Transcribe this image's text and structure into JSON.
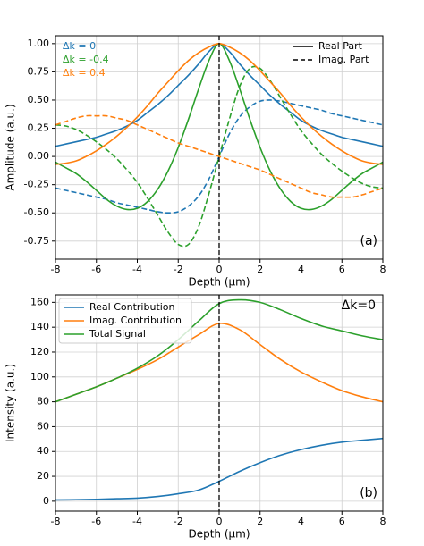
{
  "chart_data": [
    {
      "type": "line",
      "ylabel": "Amplitude (a.u.)",
      "xlabel": "Depth (μm)",
      "annotation": "(a)",
      "xlim": [
        -8,
        8
      ],
      "ylim": [
        -0.91,
        1.07
      ],
      "grid": true,
      "vline": 0,
      "xticks": [
        -8,
        -6,
        -4,
        -2,
        0,
        2,
        4,
        6,
        8
      ],
      "yticks": [
        -0.75,
        {
          "value": -0.5,
          "label": "-0.50"
        },
        -0.25,
        {
          "value": 0,
          "label": "0.00"
        },
        0.25,
        {
          "value": 0.5,
          "label": "0.50"
        },
        0.75,
        {
          "value": 1,
          "label": "1.00"
        }
      ],
      "x": [
        -8,
        -7.5,
        -7,
        -6.5,
        -6,
        -5.5,
        -5,
        -4.5,
        -4,
        -3.5,
        -3,
        -2.5,
        -2,
        -1.5,
        -1,
        -0.5,
        0,
        0.5,
        1,
        1.5,
        2,
        2.5,
        3,
        3.5,
        4,
        4.5,
        5,
        5.5,
        6,
        6.5,
        7,
        7.5,
        8
      ],
      "style_legend": [
        {
          "label": "Real Part",
          "dash": false
        },
        {
          "label": "Imag. Part",
          "dash": true
        }
      ],
      "groups": [
        {
          "label": "Δk = 0",
          "color": "#1f77b4",
          "lines": [
            [
              0.09,
              0.11,
              0.13,
              0.15,
              0.17,
              0.2,
              0.23,
              0.27,
              0.32,
              0.39,
              0.46,
              0.54,
              0.63,
              0.72,
              0.82,
              0.93,
              1.0,
              0.93,
              0.82,
              0.72,
              0.63,
              0.54,
              0.46,
              0.39,
              0.32,
              0.27,
              0.23,
              0.2,
              0.17,
              0.15,
              0.13,
              0.11,
              0.09
            ],
            [
              -0.28,
              -0.3,
              -0.32,
              -0.34,
              -0.36,
              -0.38,
              -0.41,
              -0.43,
              -0.45,
              -0.47,
              -0.49,
              -0.5,
              -0.49,
              -0.44,
              -0.35,
              -0.2,
              0,
              0.2,
              0.35,
              0.44,
              0.49,
              0.5,
              0.49,
              0.47,
              0.45,
              0.43,
              0.41,
              0.38,
              0.36,
              0.34,
              0.32,
              0.3,
              0.28
            ]
          ]
        },
        {
          "label": "Δk = -0.4",
          "color": "#2ca02c",
          "lines": [
            [
              -0.05,
              -0.1,
              -0.15,
              -0.22,
              -0.3,
              -0.38,
              -0.44,
              -0.47,
              -0.46,
              -0.4,
              -0.29,
              -0.13,
              0.08,
              0.33,
              0.6,
              0.85,
              1.0,
              0.85,
              0.6,
              0.33,
              0.08,
              -0.13,
              -0.29,
              -0.4,
              -0.46,
              -0.47,
              -0.44,
              -0.38,
              -0.3,
              -0.22,
              -0.15,
              -0.1,
              -0.05
            ],
            [
              0.28,
              0.27,
              0.24,
              0.19,
              0.13,
              0.06,
              -0.02,
              -0.12,
              -0.23,
              -0.37,
              -0.52,
              -0.67,
              -0.78,
              -0.78,
              -0.62,
              -0.33,
              0,
              0.33,
              0.62,
              0.78,
              0.78,
              0.67,
              0.52,
              0.37,
              0.23,
              0.12,
              0.02,
              -0.06,
              -0.13,
              -0.19,
              -0.24,
              -0.27,
              -0.28
            ]
          ]
        },
        {
          "label": "Δk = 0.4",
          "color": "#ff7f0e",
          "lines": [
            [
              -0.07,
              -0.06,
              -0.04,
              0.0,
              0.05,
              0.11,
              0.18,
              0.26,
              0.35,
              0.45,
              0.56,
              0.66,
              0.76,
              0.85,
              0.92,
              0.97,
              1.0,
              0.97,
              0.92,
              0.85,
              0.76,
              0.66,
              0.56,
              0.45,
              0.35,
              0.26,
              0.18,
              0.11,
              0.05,
              0.0,
              -0.04,
              -0.06,
              -0.07
            ],
            [
              0.28,
              0.31,
              0.34,
              0.36,
              0.36,
              0.36,
              0.34,
              0.32,
              0.28,
              0.24,
              0.2,
              0.16,
              0.12,
              0.09,
              0.06,
              0.03,
              0,
              -0.03,
              -0.06,
              -0.09,
              -0.12,
              -0.16,
              -0.2,
              -0.24,
              -0.28,
              -0.32,
              -0.34,
              -0.36,
              -0.36,
              -0.36,
              -0.34,
              -0.31,
              -0.28
            ]
          ]
        }
      ]
    },
    {
      "type": "line",
      "ylabel": "Intensity (a.u.)",
      "xlabel": "Depth (μm)",
      "annotation": "(b)",
      "title": "Δk=0",
      "xlim": [
        -8,
        8
      ],
      "ylim": [
        -8,
        166
      ],
      "grid": true,
      "vline": 0,
      "xticks": [
        -8,
        -6,
        -4,
        -2,
        0,
        2,
        4,
        6,
        8
      ],
      "yticks": [
        0,
        20,
        40,
        60,
        80,
        100,
        120,
        140,
        160
      ],
      "x": [
        -8,
        -7,
        -6,
        -5,
        -4,
        -3,
        -2,
        -1,
        0,
        1,
        2,
        3,
        4,
        5,
        6,
        7,
        8
      ],
      "series": [
        {
          "name": "Real Contribution",
          "color": "#1f77b4",
          "values": [
            1,
            1.2,
            1.5,
            2,
            2.5,
            3.8,
            6,
            9,
            16,
            24,
            31,
            37,
            41.5,
            45,
            47.5,
            49,
            50.5
          ]
        },
        {
          "name": "Imag. Contribution",
          "color": "#ff7f0e",
          "values": [
            80,
            86,
            92,
            99,
            106,
            114,
            124,
            134,
            143,
            138,
            126,
            114,
            104,
            96,
            89,
            84,
            80
          ]
        },
        {
          "name": "Total Signal",
          "color": "#2ca02c",
          "values": [
            80,
            86,
            92,
            99,
            107,
            117,
            130,
            145,
            159,
            162,
            160,
            154,
            147,
            141,
            137,
            133,
            130
          ]
        }
      ]
    }
  ]
}
